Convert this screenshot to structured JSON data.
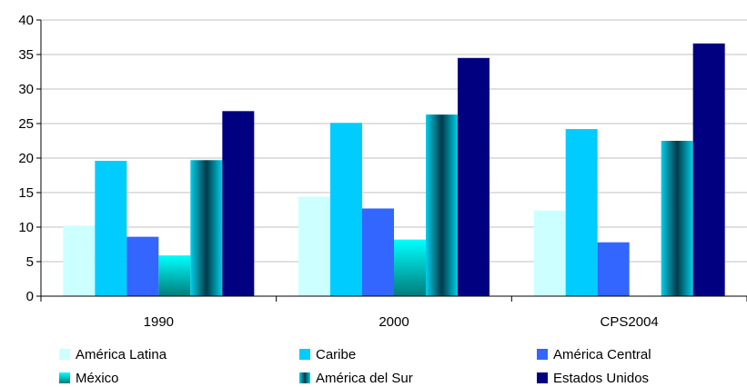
{
  "chart_data": {
    "type": "bar",
    "title": "",
    "xlabel": "",
    "ylabel": "",
    "ylim": [
      0,
      40
    ],
    "yticks": [
      0,
      5,
      10,
      15,
      20,
      25,
      30,
      35,
      40
    ],
    "grid": true,
    "legend_position": "bottom",
    "categories": [
      "1990",
      "2000",
      "CPS2004"
    ],
    "series": [
      {
        "name": "América Latina",
        "values": [
          10.2,
          14.4,
          12.4
        ],
        "color": "#ccffff"
      },
      {
        "name": "Caribe",
        "values": [
          19.6,
          25.1,
          24.2
        ],
        "color": "#00ccff"
      },
      {
        "name": "América Central",
        "values": [
          8.6,
          12.7,
          7.8
        ],
        "color": "#3366ff"
      },
      {
        "name": "México",
        "values": [
          5.9,
          8.2,
          null
        ],
        "color": "#00e5e5"
      },
      {
        "name": "América del Sur",
        "values": [
          19.7,
          26.3,
          22.5
        ],
        "color": "#006680"
      },
      {
        "name": "Estados Unidos",
        "values": [
          26.8,
          34.5,
          36.6
        ],
        "color": "#000080"
      }
    ]
  }
}
